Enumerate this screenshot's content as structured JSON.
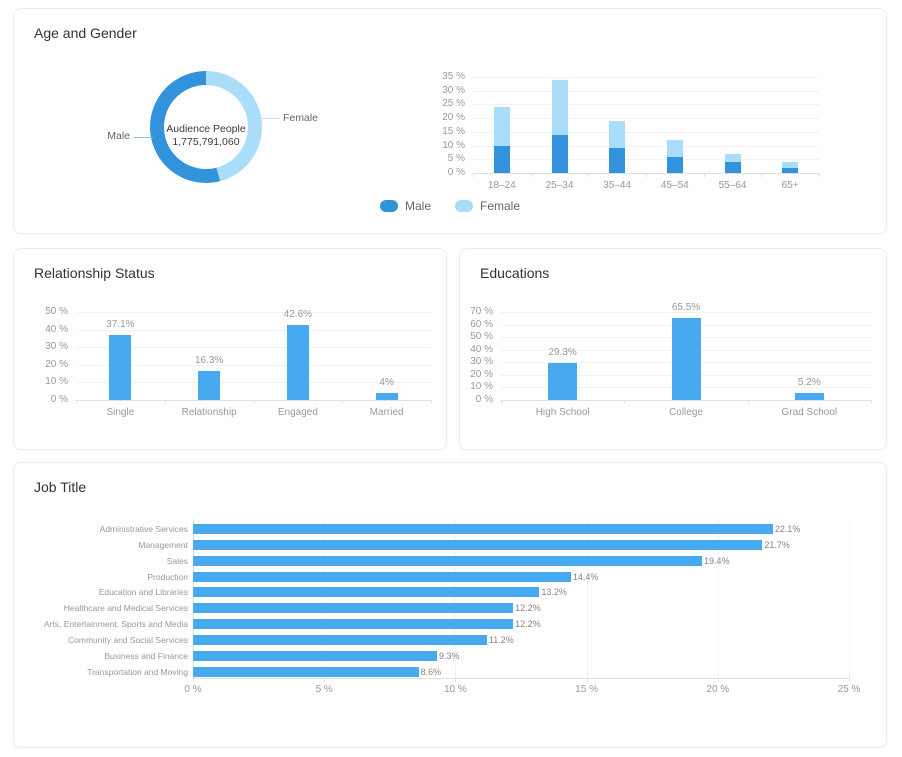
{
  "chart_data": [
    {
      "type": "pie",
      "donut": true,
      "title": "Age and Gender",
      "labels": [
        "Male",
        "Female"
      ],
      "values": [
        54,
        46
      ],
      "colors": [
        "#3292dc",
        "#a9ddf9"
      ],
      "center_label": "Audience People",
      "center_value": "1,775,791,060",
      "legend_position": "none"
    },
    {
      "type": "bar",
      "stacked": true,
      "title": "",
      "categories": [
        "18–24",
        "25–34",
        "35–44",
        "45–54",
        "55–64",
        "65+"
      ],
      "series": [
        {
          "name": "Male",
          "color": "#3292dc",
          "values": [
            10,
            14,
            9,
            6,
            4,
            2
          ]
        },
        {
          "name": "Female",
          "color": "#a9ddf9",
          "values": [
            14,
            20,
            10,
            6,
            3,
            2
          ]
        }
      ],
      "ylim": [
        0,
        35
      ],
      "ystep": 5,
      "tick_suffix": " %",
      "grid": true,
      "legend_position": "bottom-center"
    },
    {
      "type": "bar",
      "title": "Relationship Status",
      "categories": [
        "Single",
        "Relationship",
        "Engaged",
        "Married"
      ],
      "values": [
        37.1,
        16.3,
        42.6,
        4
      ],
      "value_labels": [
        "37.1%",
        "16.3%",
        "42.6%",
        "4%"
      ],
      "bar_color": "#47aaf0",
      "ylim": [
        0,
        50
      ],
      "ystep": 10,
      "tick_suffix": " %",
      "grid": true
    },
    {
      "type": "bar",
      "title": "Educations",
      "categories": [
        "High School",
        "College",
        "Grad School"
      ],
      "values": [
        29.3,
        65.5,
        5.2
      ],
      "value_labels": [
        "29.3%",
        "65.5%",
        "5.2%"
      ],
      "bar_color": "#47aaf0",
      "ylim": [
        0,
        70
      ],
      "ystep": 10,
      "tick_suffix": " %",
      "grid": true
    },
    {
      "type": "hbar",
      "title": "Job Title",
      "categories": [
        "Administrative Services",
        "Management",
        "Sales",
        "Production",
        "Education and Libraries",
        "Healthcare and Medical Services",
        "Arts, Entertainment, Sports and Media",
        "Community and Social Services",
        "Business and Finance",
        "Transportation and Moving"
      ],
      "values": [
        22.1,
        21.7,
        19.4,
        14.4,
        13.2,
        12.2,
        12.2,
        11.2,
        9.3,
        8.6
      ],
      "value_labels": [
        "22.1%",
        "21.7%",
        "19.4%",
        "14.4%",
        "13.2%",
        "12.2%",
        "12.2%",
        "11.2%",
        "9.3%",
        "8.6%"
      ],
      "bar_color": "#47aaf0",
      "xlim": [
        0,
        25
      ],
      "xstep": 5,
      "tick_suffix": " %",
      "grid": true
    }
  ]
}
